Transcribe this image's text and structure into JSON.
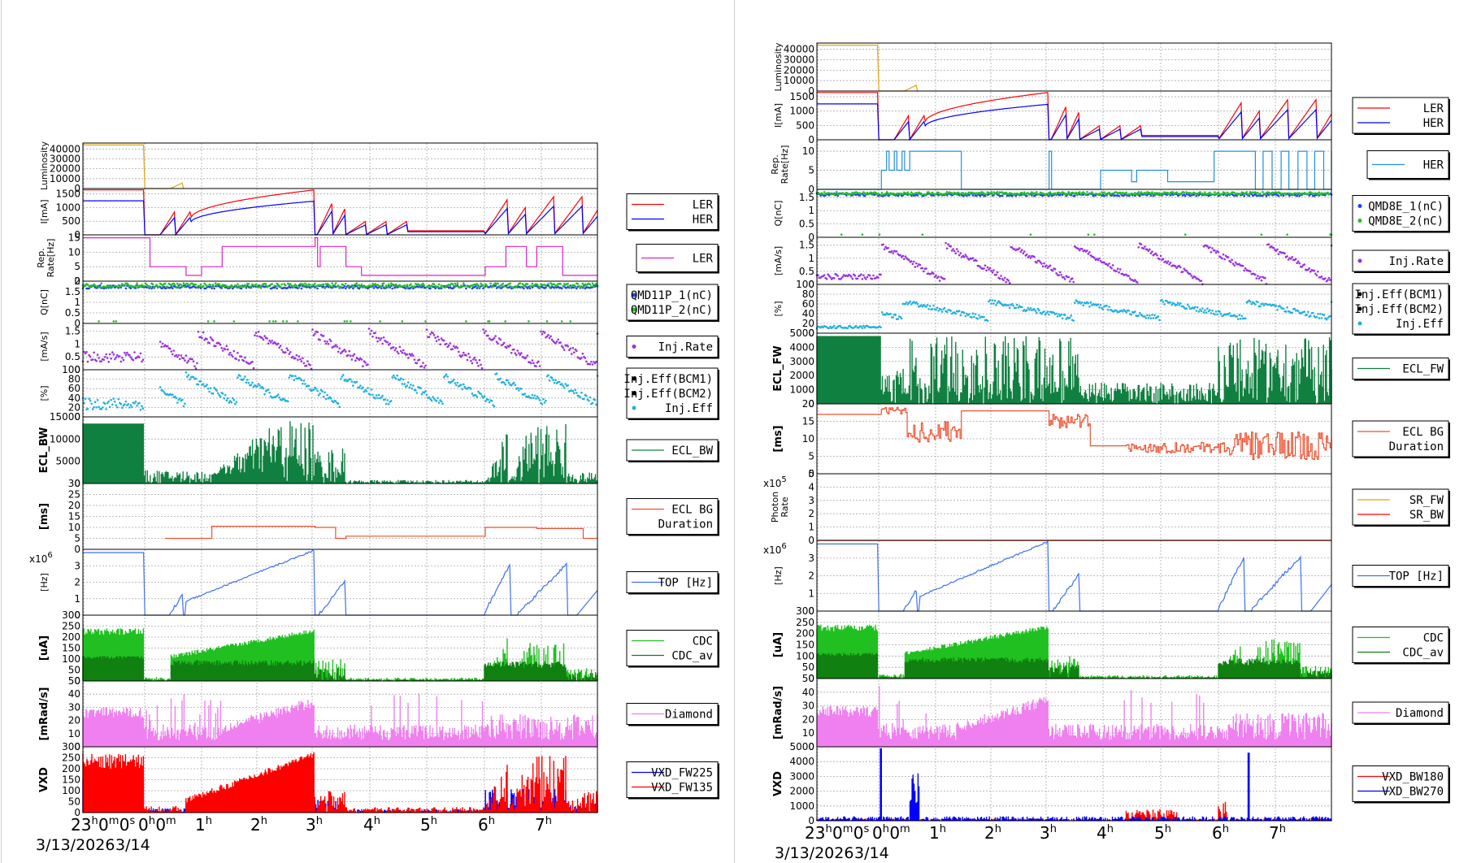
{
  "chart_data": [
    {
      "type": "line",
      "x_ticks": [
        "23h0m0s",
        "0h0m",
        "1h",
        "2h",
        "3h",
        "4h",
        "5h",
        "6h",
        "7h"
      ],
      "date_label": "3/13/2026",
      "date_label2": "3/14",
      "panels": [
        {
          "ylabel": "Luminosity",
          "yticks": [
            0,
            10000,
            20000,
            30000,
            40000
          ],
          "ylim": [
            0,
            46000
          ],
          "series": [
            {
              "name": "",
              "color": "#e0a410",
              "kind": "lumi",
              "style": "line"
            }
          ]
        },
        {
          "ylabel": "I[mA]",
          "yticks": [
            0,
            500,
            1000,
            1500
          ],
          "ylim": [
            0,
            1700
          ],
          "legend": {
            "size": "normal"
          },
          "series": [
            {
              "name": "LER",
              "color": "#ff0000",
              "kind": "ler",
              "style": "line"
            },
            {
              "name": "HER",
              "color": "#0000ff",
              "kind": "her",
              "style": "line"
            }
          ]
        },
        {
          "ylabel": "Rep. Rate[Hz]",
          "yticks": [
            0,
            5,
            10,
            15
          ],
          "ylim": [
            0,
            16
          ],
          "legend": {
            "size": "big"
          },
          "series": [
            {
              "name": "LER",
              "color": "#e020c8",
              "kind": "rep",
              "style": "step"
            }
          ]
        },
        {
          "ylabel": "Q[nC]",
          "yticks": [
            0,
            0.5,
            1,
            1.5,
            2
          ],
          "ylim": [
            0,
            2
          ],
          "legend": {
            "size": "normal",
            "marker": "dot"
          },
          "series": [
            {
              "name": "QMD11P_1(nC)",
              "color": "#2040ff",
              "kind": "q1",
              "style": "dots"
            },
            {
              "name": "QMD11P_2(nC)",
              "color": "#20c020",
              "kind": "q2",
              "style": "dots"
            }
          ]
        },
        {
          "ylabel": "[mA/s]",
          "yticks": [
            0,
            0.5,
            1,
            1.5
          ],
          "ylim": [
            0,
            1.8
          ],
          "legend": {
            "size": "normal",
            "marker": "dot"
          },
          "series": [
            {
              "name": "Inj.Rate",
              "color": "#9a30e0",
              "kind": "injrate",
              "style": "dots"
            }
          ]
        },
        {
          "ylabel": "[%]",
          "yticks": [
            0,
            20,
            40,
            60,
            80,
            100
          ],
          "ylim": [
            0,
            100
          ],
          "legend": {
            "size": "normal",
            "marker": "dot"
          },
          "series": [
            {
              "name": "Inj.Eff(BCM1)",
              "color": "#000000",
              "kind": "none",
              "style": "dots"
            },
            {
              "name": "Inj.Eff(BCM2)",
              "color": "#000000",
              "kind": "none",
              "style": "dots"
            },
            {
              "name": "Inj.Eff",
              "color": "#20b0e0",
              "kind": "eff",
              "style": "dots"
            }
          ]
        },
        {
          "ylabel": "ECL_BW",
          "bold": true,
          "yticks": [
            0,
            5000,
            10000,
            15000
          ],
          "ylim": [
            0,
            15000
          ],
          "series": [
            {
              "name": "ECL_BW",
              "color": "#108040",
              "kind": "ecl",
              "style": "fill"
            }
          ]
        },
        {
          "ylabel": "[ms]",
          "bold": true,
          "yticks": [
            0,
            5,
            10,
            15,
            20,
            25,
            30
          ],
          "ylim": [
            0,
            30
          ],
          "series": [
            {
              "name": "ECL BG\nDuration",
              "color": "#f05030",
              "kind": "dur",
              "style": "step"
            }
          ]
        },
        {
          "ylabel": "[Hz]",
          "exp": "x10^6",
          "yticks": [
            0,
            1,
            2,
            3
          ],
          "ylim": [
            0,
            4
          ],
          "series": [
            {
              "name": "TOP [Hz]",
              "color": "#4070f0",
              "kind": "top",
              "style": "line"
            }
          ]
        },
        {
          "ylabel": "[uA]",
          "bold": true,
          "yticks": [
            0,
            50,
            100,
            150,
            200,
            250,
            300
          ],
          "ylim": [
            0,
            300
          ],
          "series": [
            {
              "name": "CDC",
              "color": "#20c020",
              "kind": "cdc",
              "style": "fill"
            },
            {
              "name": "CDC_av",
              "color": "#108010",
              "kind": "cdcav",
              "style": "fill"
            }
          ]
        },
        {
          "ylabel": "[mRad/s]",
          "bold": true,
          "yticks": [
            0,
            10,
            20,
            30,
            40,
            50
          ],
          "ylim": [
            0,
            50
          ],
          "series": [
            {
              "name": "Diamond",
              "color": "#f080f0",
              "kind": "dia",
              "style": "fill"
            }
          ]
        },
        {
          "ylabel": "VXD",
          "bold": true,
          "yticks": [
            0,
            50,
            100,
            150,
            200,
            250,
            300
          ],
          "ylim": [
            0,
            300
          ],
          "series": [
            {
              "name": "VXD_FW225",
              "color": "#0000ff",
              "kind": "vxdblue",
              "style": "fill"
            },
            {
              "name": "VXD_FW135",
              "color": "#ff0000",
              "kind": "vxdred",
              "style": "fill"
            }
          ]
        }
      ]
    },
    {
      "type": "line",
      "x_ticks": [
        "23h0m0s",
        "0h0m",
        "1h",
        "2h",
        "3h",
        "4h",
        "5h",
        "6h",
        "7h"
      ],
      "date_label": "3/13/2026",
      "date_label2": "3/14",
      "panels": [
        {
          "ylabel": "Luminosity",
          "yticks": [
            0,
            10000,
            20000,
            30000,
            40000
          ],
          "ylim": [
            0,
            46000
          ],
          "series": [
            {
              "name": "",
              "color": "#e0a410",
              "kind": "lumi",
              "style": "line"
            }
          ]
        },
        {
          "ylabel": "I[mA]",
          "yticks": [
            0,
            500,
            1000,
            1500
          ],
          "ylim": [
            0,
            1700
          ],
          "legend": {
            "size": "normal"
          },
          "series": [
            {
              "name": "LER",
              "color": "#ff0000",
              "kind": "ler",
              "style": "line"
            },
            {
              "name": "HER",
              "color": "#0000ff",
              "kind": "her",
              "style": "line"
            }
          ]
        },
        {
          "ylabel": "Rep. Rate[Hz]",
          "yticks": [
            0,
            5,
            10
          ],
          "ylim": [
            0,
            13
          ],
          "legend": {
            "size": "big"
          },
          "series": [
            {
              "name": "HER",
              "color": "#2090e0",
              "kind": "rep2",
              "style": "step"
            }
          ]
        },
        {
          "ylabel": "Q[nC]",
          "yticks": [
            0,
            0.5,
            1,
            1.5
          ],
          "ylim": [
            0,
            1.8
          ],
          "legend": {
            "size": "normal",
            "marker": "dot"
          },
          "series": [
            {
              "name": "QMD8E_1(nC)",
              "color": "#2040ff",
              "kind": "q1b",
              "style": "dots"
            },
            {
              "name": "QMD8E_2(nC)",
              "color": "#20c020",
              "kind": "q2b",
              "style": "dots"
            }
          ]
        },
        {
          "ylabel": "[mA/s]",
          "yticks": [
            0,
            0.5,
            1,
            1.5
          ],
          "ylim": [
            0,
            1.8
          ],
          "legend": {
            "size": "normal",
            "marker": "dot"
          },
          "series": [
            {
              "name": "Inj.Rate",
              "color": "#9a30e0",
              "kind": "injrate2",
              "style": "dots"
            }
          ]
        },
        {
          "ylabel": "[%]",
          "yticks": [
            0,
            20,
            40,
            60,
            80,
            100
          ],
          "ylim": [
            0,
            100
          ],
          "legend": {
            "size": "normal",
            "marker": "dot"
          },
          "series": [
            {
              "name": "Inj.Eff(BCM1)",
              "color": "#000000",
              "kind": "none",
              "style": "dots"
            },
            {
              "name": "Inj.Eff(BCM2)",
              "color": "#000000",
              "kind": "none",
              "style": "dots"
            },
            {
              "name": "Inj.Eff",
              "color": "#20b0e0",
              "kind": "eff2",
              "style": "dots"
            }
          ]
        },
        {
          "ylabel": "ECL_FW",
          "bold": true,
          "yticks": [
            0,
            1000,
            2000,
            3000,
            4000,
            5000
          ],
          "ylim": [
            0,
            5000
          ],
          "series": [
            {
              "name": "ECL_FW",
              "color": "#108040",
              "kind": "eclfw",
              "style": "fill"
            }
          ]
        },
        {
          "ylabel": "[ms]",
          "bold": true,
          "yticks": [
            0,
            5,
            10,
            15,
            20
          ],
          "ylim": [
            0,
            20
          ],
          "series": [
            {
              "name": "ECL BG\nDuration",
              "color": "#f05030",
              "kind": "dur2",
              "style": "step"
            }
          ]
        },
        {
          "ylabel": "Photon Rate",
          "exp": "x10^5",
          "yticks": [
            0,
            1,
            2,
            3,
            4,
            5
          ],
          "ylim": [
            0,
            5
          ],
          "series": [
            {
              "name": "SR_FW",
              "color": "#e0a010",
              "kind": "zero",
              "style": "line"
            },
            {
              "name": "SR_BW",
              "color": "#ff0000",
              "kind": "zero",
              "style": "line"
            }
          ]
        },
        {
          "ylabel": "[Hz]",
          "exp": "x10^6",
          "yticks": [
            0,
            1,
            2,
            3
          ],
          "ylim": [
            0,
            4
          ],
          "series": [
            {
              "name": "TOP [Hz]",
              "color": "#4070f0",
              "kind": "top2",
              "style": "line"
            }
          ]
        },
        {
          "ylabel": "[uA]",
          "bold": true,
          "yticks": [
            0,
            50,
            100,
            150,
            200,
            250,
            300
          ],
          "ylim": [
            0,
            300
          ],
          "series": [
            {
              "name": "CDC",
              "color": "#20c020",
              "kind": "cdc",
              "style": "fill"
            },
            {
              "name": "CDC_av",
              "color": "#108010",
              "kind": "cdcav",
              "style": "fill"
            }
          ]
        },
        {
          "ylabel": "[mRad/s]",
          "bold": true,
          "yticks": [
            0,
            10,
            20,
            30,
            40,
            50
          ],
          "ylim": [
            0,
            50
          ],
          "series": [
            {
              "name": "Diamond",
              "color": "#f080f0",
              "kind": "dia",
              "style": "fill"
            }
          ]
        },
        {
          "ylabel": "VXD",
          "bold": true,
          "yticks": [
            0,
            1000,
            2000,
            3000,
            4000,
            5000
          ],
          "ylim": [
            0,
            5000
          ],
          "series": [
            {
              "name": "VXD_BW180",
              "color": "#ff0000",
              "kind": "vxd2red",
              "style": "fill"
            },
            {
              "name": "VXD_BW270",
              "color": "#0000ff",
              "kind": "vxd2blue",
              "style": "fill"
            }
          ]
        }
      ]
    }
  ]
}
